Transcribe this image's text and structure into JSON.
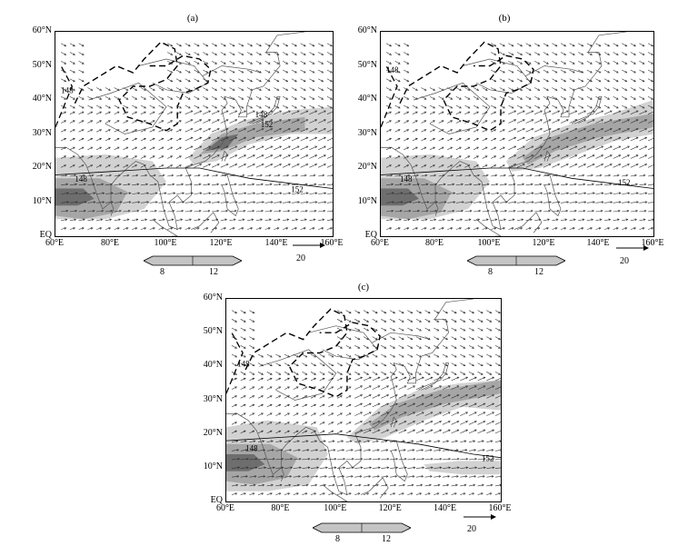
{
  "panels": [
    {
      "label": "(a)",
      "contours": [
        "148",
        "148",
        "152",
        "148",
        "152"
      ]
    },
    {
      "label": "(b)",
      "contours": [
        "148",
        "148",
        "152"
      ]
    },
    {
      "label": "(c)",
      "contours": [
        "148",
        "148",
        "152"
      ]
    }
  ],
  "lat_ticks": [
    "60°N",
    "50°N",
    "40°N",
    "30°N",
    "20°N",
    "10°N",
    "EQ"
  ],
  "lon_ticks": [
    "60°E",
    "80°E",
    "100°E",
    "120°E",
    "140°E",
    "160°E"
  ],
  "reference_vector": {
    "value": "20"
  },
  "colorbar": {
    "low": "8",
    "high": "12",
    "fill": "#c4c4c4",
    "edge": "#000000"
  },
  "colors": {
    "shade_light": "#d2d2d2",
    "shade_mid": "#a6a6a6",
    "shade_dark": "#6e6e6e",
    "coast": "#555555",
    "arrow": "#333333"
  }
}
